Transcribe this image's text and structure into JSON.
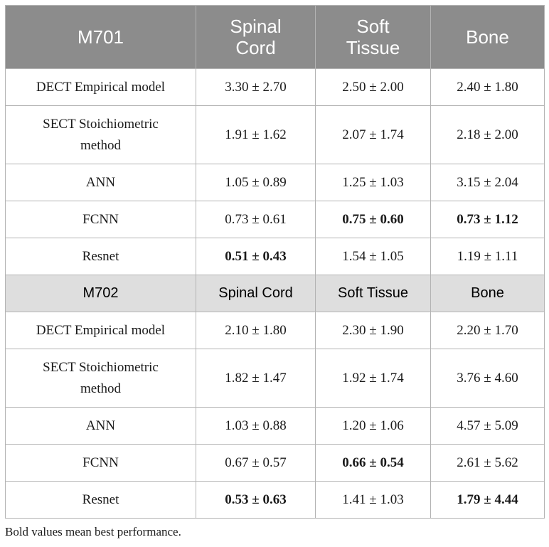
{
  "groups": [
    {
      "header": [
        "M701",
        "Spinal Cord",
        "Soft Tissue",
        "Bone"
      ],
      "rows": [
        {
          "method": "DECT Empirical model",
          "values": [
            "3.30 ± 2.70",
            "2.50 ± 2.00",
            "2.40 ± 1.80"
          ],
          "bold": [
            false,
            false,
            false
          ]
        },
        {
          "method": "SECT Stoichiometric method",
          "values": [
            "1.91 ± 1.62",
            "2.07 ± 1.74",
            "2.18 ± 2.00"
          ],
          "bold": [
            false,
            false,
            false
          ]
        },
        {
          "method": "ANN",
          "values": [
            "1.05 ± 0.89",
            "1.25 ± 1.03",
            "3.15 ± 2.04"
          ],
          "bold": [
            false,
            false,
            false
          ]
        },
        {
          "method": "FCNN",
          "values": [
            "0.73 ± 0.61",
            "0.75 ± 0.60",
            "0.73 ± 1.12"
          ],
          "bold": [
            false,
            true,
            true
          ]
        },
        {
          "method": "Resnet",
          "values": [
            "0.51 ± 0.43",
            "1.54 ± 1.05",
            "1.19 ± 1.11"
          ],
          "bold": [
            true,
            false,
            false
          ]
        }
      ]
    },
    {
      "header": [
        "M702",
        "Spinal Cord",
        "Soft Tissue",
        "Bone"
      ],
      "rows": [
        {
          "method": "DECT Empirical model",
          "values": [
            "2.10 ± 1.80",
            "2.30 ± 1.90",
            "2.20 ± 1.70"
          ],
          "bold": [
            false,
            false,
            false
          ]
        },
        {
          "method": "SECT Stoichiometric method",
          "values": [
            "1.82 ± 1.47",
            "1.92 ± 1.74",
            "3.76 ± 4.60"
          ],
          "bold": [
            false,
            false,
            false
          ]
        },
        {
          "method": "ANN",
          "values": [
            "1.03 ± 0.88",
            "1.20 ± 1.06",
            "4.57 ± 5.09"
          ],
          "bold": [
            false,
            false,
            false
          ]
        },
        {
          "method": "FCNN",
          "values": [
            "0.67 ± 0.57",
            "0.66 ± 0.54",
            "2.61 ± 5.62"
          ],
          "bold": [
            false,
            true,
            false
          ]
        },
        {
          "method": "Resnet",
          "values": [
            "0.53 ± 0.63",
            "1.41 ± 1.03",
            "1.79 ± 4.44"
          ],
          "bold": [
            true,
            false,
            true
          ]
        }
      ]
    }
  ],
  "footnote": "Bold values mean best performance."
}
